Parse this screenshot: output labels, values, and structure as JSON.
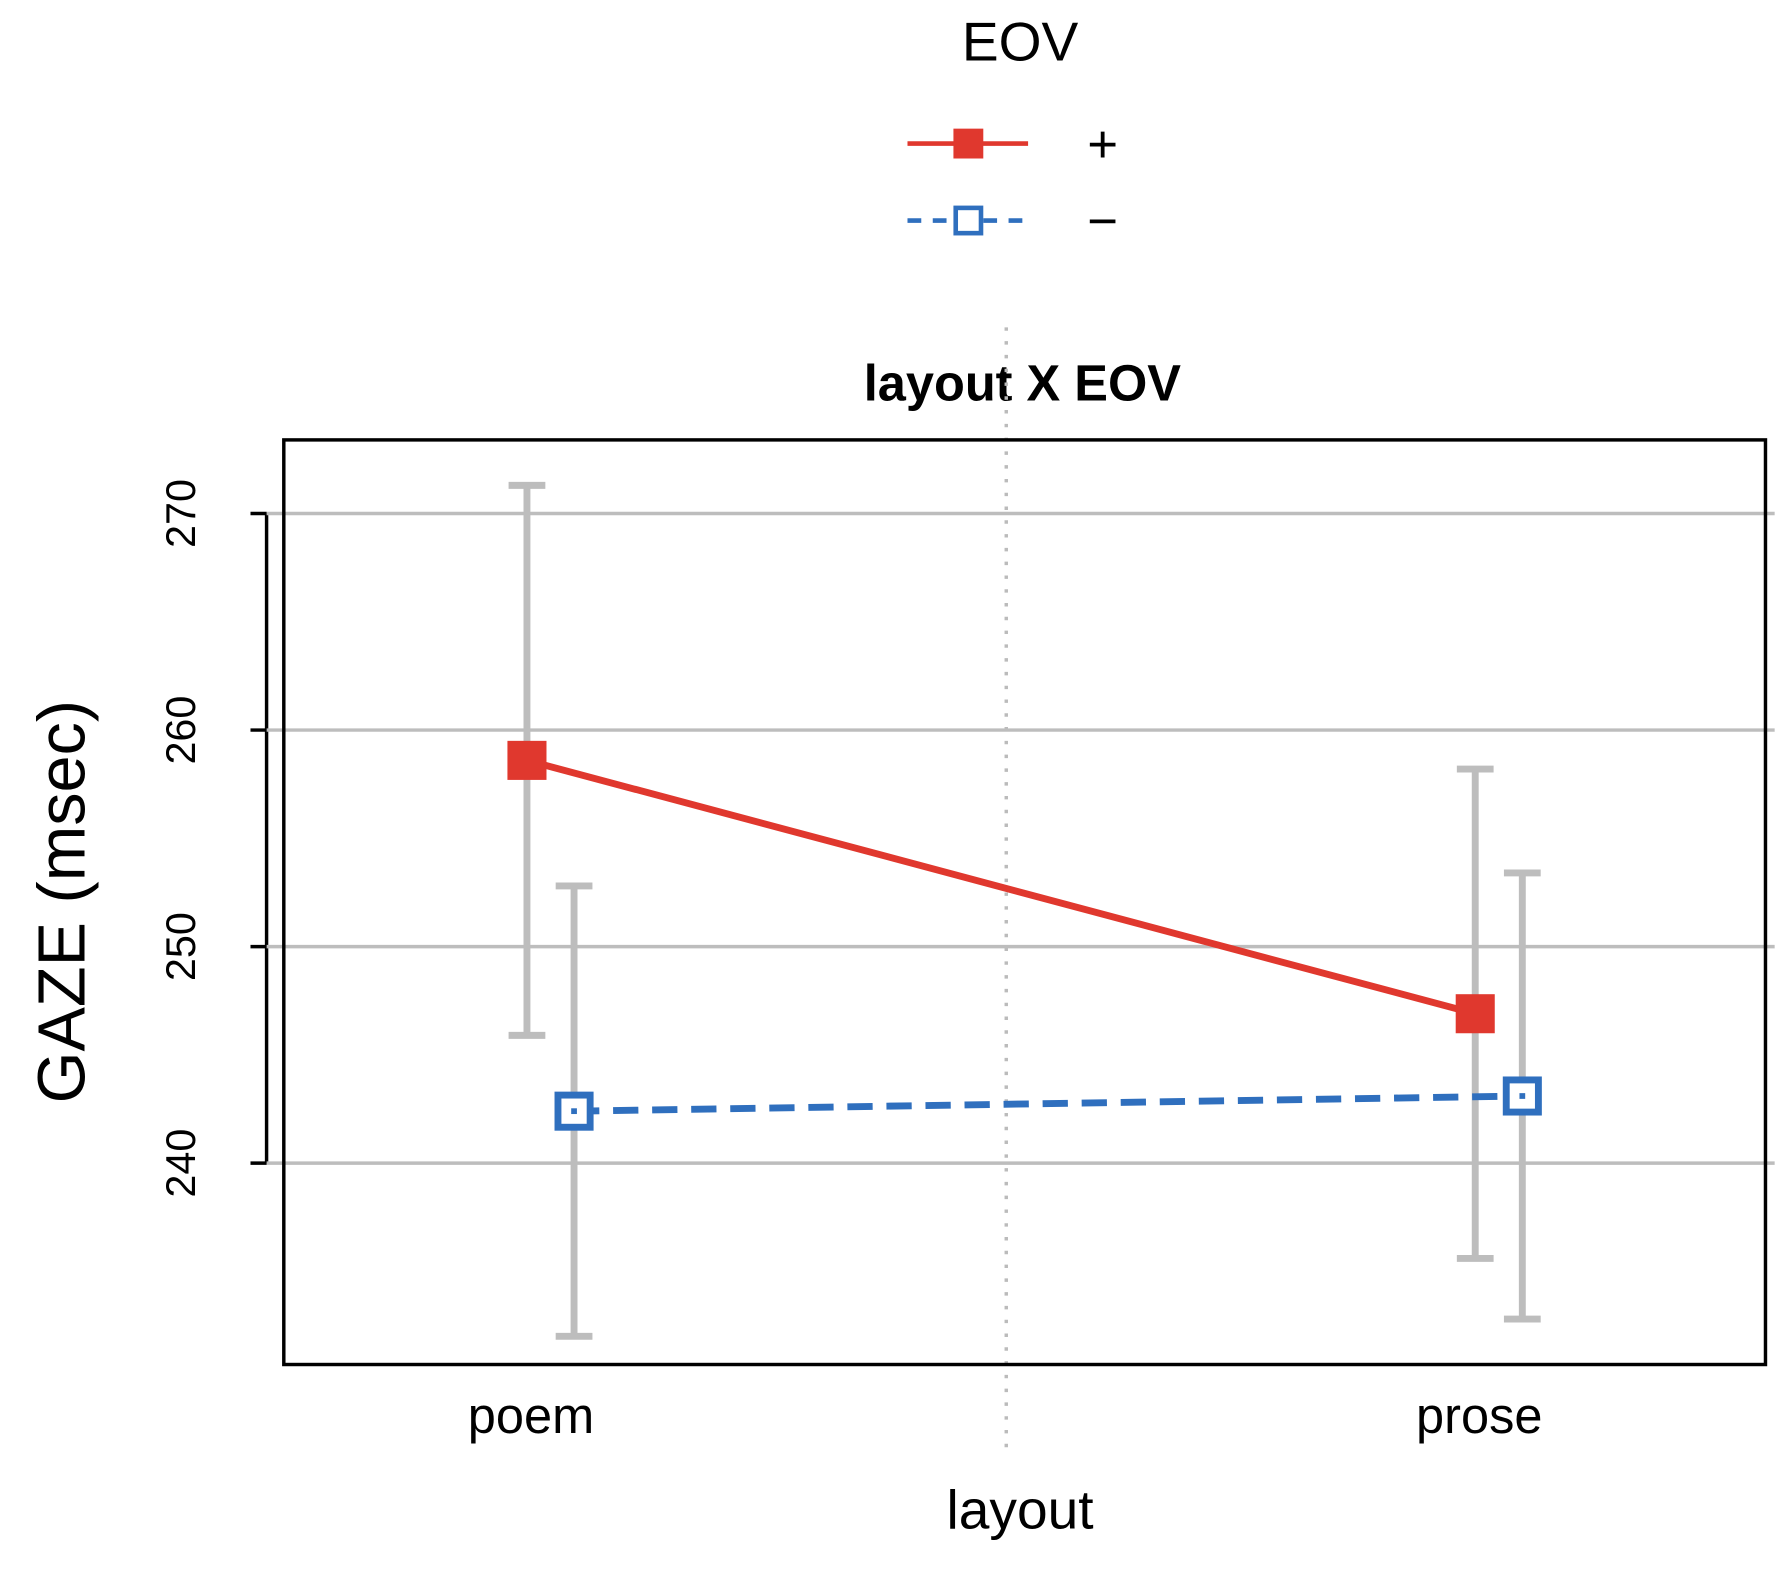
{
  "chart_data": {
    "type": "line",
    "title": "layout X EOV",
    "xlabel": "layout",
    "ylabel": "GAZE (msec)",
    "legend_title": "EOV",
    "legend": "top",
    "categories": [
      "poem",
      "prose"
    ],
    "series": [
      {
        "name": "+",
        "color": "#e0382e",
        "linestyle": "solid",
        "marker_fill": true,
        "values": [
          258.6,
          246.9
        ],
        "errors": [
          12.7,
          11.3
        ]
      },
      {
        "name": "−",
        "color": "#2f6fbe",
        "linestyle": "dashed",
        "marker_fill": false,
        "values": [
          242.4,
          243.1
        ],
        "errors": [
          10.4,
          10.3
        ]
      }
    ],
    "error_color": "#bdbdbd",
    "ylim": [
      230.7,
      273.4
    ],
    "yticks": [
      240,
      250,
      260,
      270
    ],
    "grid": true
  }
}
